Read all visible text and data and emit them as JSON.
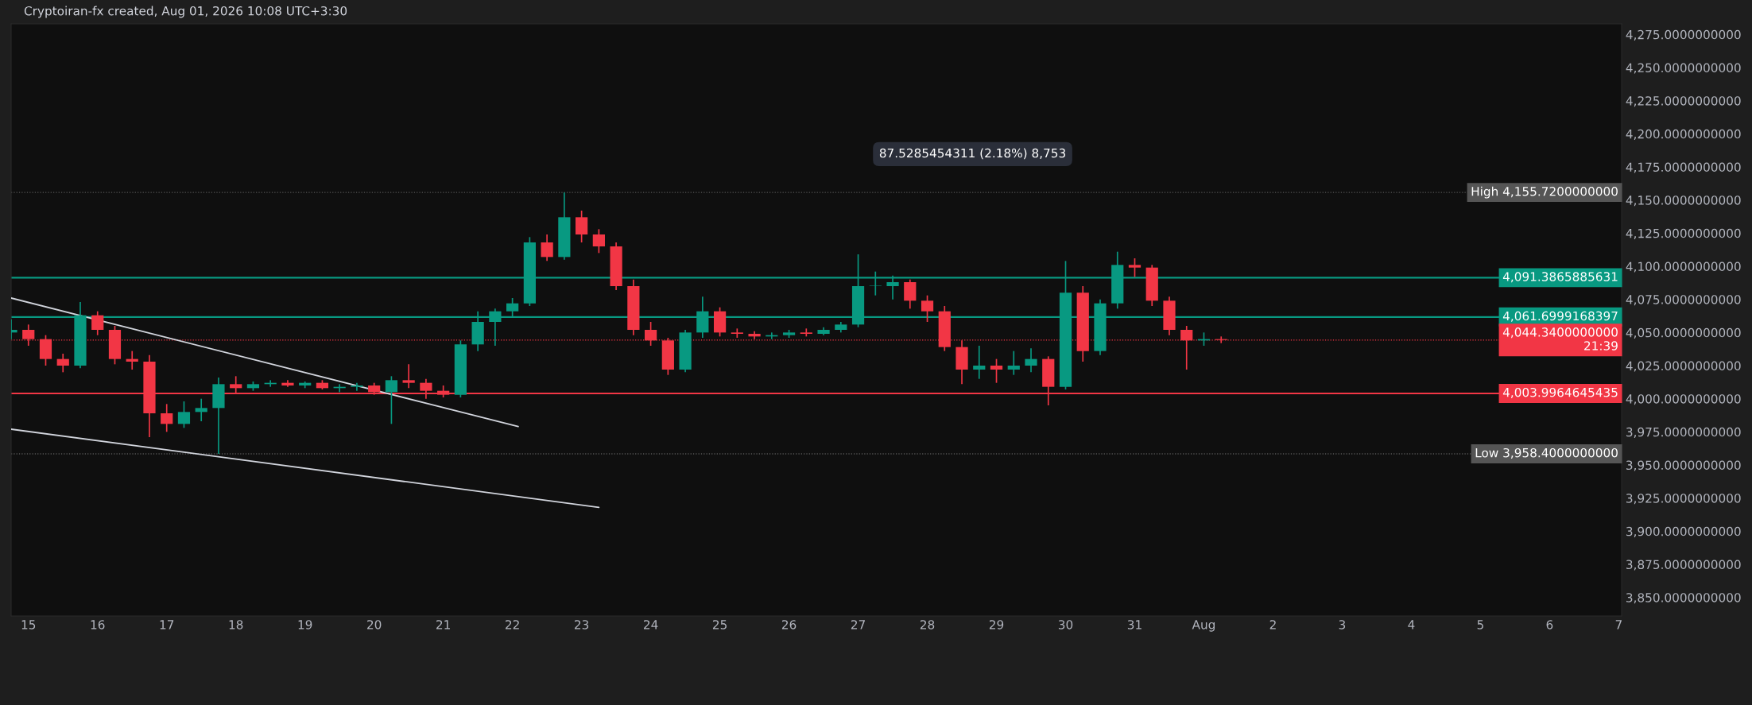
{
  "chart_data": {
    "type": "candlestick",
    "title": "Cryptoiran-fx created, Aug 01, 2026 10:08 UTC+3:30",
    "x": [
      "2026-07-14T18:00",
      "2026-07-15T00:00",
      "2026-07-15T06:00",
      "2026-07-15T12:00",
      "2026-07-15T18:00",
      "2026-07-16T00:00",
      "2026-07-16T06:00",
      "2026-07-16T12:00",
      "2026-07-16T18:00",
      "2026-07-17T00:00",
      "2026-07-17T06:00",
      "2026-07-17T12:00",
      "2026-07-17T18:00",
      "2026-07-18T00:00",
      "2026-07-18T06:00",
      "2026-07-18T12:00",
      "2026-07-18T18:00",
      "2026-07-19T00:00",
      "2026-07-19T06:00",
      "2026-07-19T12:00",
      "2026-07-19T18:00",
      "2026-07-20T00:00",
      "2026-07-20T06:00",
      "2026-07-20T12:00",
      "2026-07-20T18:00",
      "2026-07-21T00:00",
      "2026-07-21T06:00",
      "2026-07-21T12:00",
      "2026-07-21T18:00",
      "2026-07-22T00:00",
      "2026-07-22T06:00",
      "2026-07-22T12:00",
      "2026-07-22T18:00",
      "2026-07-23T00:00",
      "2026-07-23T06:00",
      "2026-07-23T12:00",
      "2026-07-23T18:00",
      "2026-07-24T00:00",
      "2026-07-24T06:00",
      "2026-07-24T12:00",
      "2026-07-24T18:00",
      "2026-07-25T00:00",
      "2026-07-25T06:00",
      "2026-07-25T12:00",
      "2026-07-25T18:00",
      "2026-07-26T00:00",
      "2026-07-26T06:00",
      "2026-07-26T12:00",
      "2026-07-26T18:00",
      "2026-07-27T00:00",
      "2026-07-27T06:00",
      "2026-07-27T12:00",
      "2026-07-27T18:00",
      "2026-07-28T00:00",
      "2026-07-28T06:00",
      "2026-07-28T12:00",
      "2026-07-28T18:00",
      "2026-07-29T00:00",
      "2026-07-29T06:00",
      "2026-07-29T12:00",
      "2026-07-29T18:00",
      "2026-07-30T00:00",
      "2026-07-30T06:00",
      "2026-07-30T12:00",
      "2026-07-30T18:00",
      "2026-07-31T00:00",
      "2026-07-31T06:00",
      "2026-07-31T12:00",
      "2026-07-31T18:00",
      "2026-08-01T00:00",
      "2026-08-01T06:00"
    ],
    "ohlc": [
      [
        4050,
        4060,
        4045,
        4052
      ],
      [
        4052,
        4056,
        4040,
        4045
      ],
      [
        4045,
        4048,
        4025,
        4030
      ],
      [
        4030,
        4034,
        4020,
        4025
      ],
      [
        4025,
        4073,
        4023,
        4063
      ],
      [
        4063,
        4066,
        4048,
        4052
      ],
      [
        4052,
        4055,
        4026,
        4030
      ],
      [
        4030,
        4036,
        4022,
        4028
      ],
      [
        4028,
        4033,
        3971,
        3989
      ],
      [
        3989,
        3996,
        3975,
        3981
      ],
      [
        3981,
        3998,
        3978,
        3990
      ],
      [
        3990,
        4000,
        3983,
        3993
      ],
      [
        3993,
        4016,
        3958.4,
        4011
      ],
      [
        4011,
        4017,
        4004,
        4008
      ],
      [
        4008,
        4013,
        4006,
        4011
      ],
      [
        4011,
        4014,
        4009,
        4012
      ],
      [
        4012,
        4014,
        4009,
        4010
      ],
      [
        4010,
        4013,
        4008,
        4012
      ],
      [
        4012,
        4014,
        4007,
        4008
      ],
      [
        4008,
        4011,
        4005,
        4009
      ],
      [
        4009,
        4012,
        4006,
        4010
      ],
      [
        4010,
        4012,
        4003,
        4005
      ],
      [
        4005,
        4017,
        3981,
        4014
      ],
      [
        4014,
        4026,
        4008,
        4012
      ],
      [
        4012,
        4015,
        4000,
        4006
      ],
      [
        4006,
        4010,
        4001,
        4003
      ],
      [
        4003,
        4044,
        4001,
        4041
      ],
      [
        4041,
        4066,
        4036,
        4058
      ],
      [
        4058,
        4068,
        4040,
        4066
      ],
      [
        4066,
        4076,
        4062,
        4072
      ],
      [
        4072,
        4122,
        4070,
        4118
      ],
      [
        4118,
        4124,
        4104,
        4107
      ],
      [
        4107,
        4155.72,
        4105,
        4137
      ],
      [
        4137,
        4142,
        4118,
        4124
      ],
      [
        4124,
        4128,
        4110,
        4115
      ],
      [
        4115,
        4118,
        4082,
        4085
      ],
      [
        4085,
        4090,
        4048,
        4052
      ],
      [
        4052,
        4058,
        4040,
        4044
      ],
      [
        4044,
        4046,
        4018,
        4022
      ],
      [
        4022,
        4052,
        4020,
        4050
      ],
      [
        4050,
        4077,
        4046,
        4066
      ],
      [
        4066,
        4069,
        4047,
        4050
      ],
      [
        4050,
        4053,
        4046,
        4049
      ],
      [
        4049,
        4051,
        4045,
        4047
      ],
      [
        4047,
        4050,
        4045,
        4048
      ],
      [
        4048,
        4052,
        4046,
        4050
      ],
      [
        4050,
        4053,
        4047,
        4049
      ],
      [
        4049,
        4054,
        4048,
        4052
      ],
      [
        4052,
        4058,
        4050,
        4056
      ],
      [
        4056,
        4109,
        4054,
        4085
      ],
      [
        4085,
        4096,
        4078,
        4085
      ],
      [
        4085,
        4093,
        4075,
        4088
      ],
      [
        4088,
        4090,
        4068,
        4074
      ],
      [
        4074,
        4078,
        4058,
        4066
      ],
      [
        4066,
        4070,
        4036,
        4039
      ],
      [
        4039,
        4044,
        4011,
        4022
      ],
      [
        4022,
        4040,
        4015,
        4025
      ],
      [
        4025,
        4030,
        4012,
        4022
      ],
      [
        4022,
        4036,
        4018,
        4025
      ],
      [
        4025,
        4038,
        4020,
        4030
      ],
      [
        4030,
        4032,
        3995,
        4009
      ],
      [
        4009,
        4104,
        4007,
        4080
      ],
      [
        4080,
        4085,
        4028,
        4036
      ],
      [
        4036,
        4075,
        4033,
        4072
      ],
      [
        4072,
        4111,
        4068,
        4101
      ],
      [
        4101,
        4106,
        4092,
        4099
      ],
      [
        4099,
        4101,
        4070,
        4074
      ],
      [
        4074,
        4077,
        4048,
        4052
      ],
      [
        4052,
        4055,
        4022,
        4044
      ],
      [
        4044,
        4050,
        4040,
        4045
      ],
      [
        4045,
        4047,
        4042,
        4044.34
      ]
    ],
    "colors": [
      "#089981",
      "#f23645",
      "#f23645",
      "#f23645",
      "#089981",
      "#f23645",
      "#f23645",
      "#f23645",
      "#f23645",
      "#f23645",
      "#089981",
      "#089981",
      "#089981",
      "#f23645",
      "#089981",
      "#089981",
      "#f23645",
      "#089981",
      "#f23645",
      "#089981",
      "#089981",
      "#f23645",
      "#089981",
      "#f23645",
      "#f23645",
      "#f23645",
      "#089981",
      "#089981",
      "#089981",
      "#089981",
      "#089981",
      "#f23645",
      "#089981",
      "#f23645",
      "#f23645",
      "#f23645",
      "#f23645",
      "#f23645",
      "#f23645",
      "#089981",
      "#089981",
      "#f23645",
      "#f23645",
      "#f23645",
      "#089981",
      "#089981",
      "#f23645",
      "#089981",
      "#089981",
      "#089981",
      "#089981",
      "#089981",
      "#f23645",
      "#f23645",
      "#f23645",
      "#f23645",
      "#089981",
      "#f23645",
      "#089981",
      "#089981",
      "#f23645",
      "#089981",
      "#f23645",
      "#089981",
      "#089981",
      "#f23645",
      "#f23645",
      "#f23645",
      "#f23645",
      "#089981",
      "#f23645"
    ],
    "series": [
      {
        "type": "line",
        "color": "#d1d4dc",
        "x": [
          "2026-07-14T18:00",
          "2026-07-22T02:00"
        ],
        "values": [
          4076,
          3979
        ]
      },
      {
        "type": "line",
        "color": "#d1d4dc",
        "x": [
          "2026-07-14T18:00",
          "2026-07-23T06:00"
        ],
        "values": [
          3977,
          3918
        ]
      }
    ],
    "xlim": [
      "2026-07-14T18:00",
      "2026-08-07T01:00"
    ],
    "xticks": [
      {
        "value": "2026-07-15",
        "label": "15"
      },
      {
        "value": "2026-07-16",
        "label": "16"
      },
      {
        "value": "2026-07-17",
        "label": "17"
      },
      {
        "value": "2026-07-18",
        "label": "18"
      },
      {
        "value": "2026-07-19",
        "label": "19"
      },
      {
        "value": "2026-07-20",
        "label": "20"
      },
      {
        "value": "2026-07-21",
        "label": "21"
      },
      {
        "value": "2026-07-22",
        "label": "22"
      },
      {
        "value": "2026-07-23",
        "label": "23"
      },
      {
        "value": "2026-07-24",
        "label": "24"
      },
      {
        "value": "2026-07-25",
        "label": "25"
      },
      {
        "value": "2026-07-26",
        "label": "26"
      },
      {
        "value": "2026-07-27",
        "label": "27"
      },
      {
        "value": "2026-07-28",
        "label": "28"
      },
      {
        "value": "2026-07-29",
        "label": "29"
      },
      {
        "value": "2026-07-30",
        "label": "30"
      },
      {
        "value": "2026-07-31",
        "label": "31"
      },
      {
        "value": "2026-08-01",
        "label": "Aug"
      },
      {
        "value": "2026-08-02",
        "label": "2"
      },
      {
        "value": "2026-08-03",
        "label": "3"
      },
      {
        "value": "2026-08-04",
        "label": "4"
      },
      {
        "value": "2026-08-05",
        "label": "5"
      },
      {
        "value": "2026-08-06",
        "label": "6"
      },
      {
        "value": "2026-08-07",
        "label": "7"
      }
    ],
    "ylim": [
      3836,
      4283
    ],
    "yticks": [
      {
        "value": 3850,
        "label": "3,850.0000000000"
      },
      {
        "value": 3875,
        "label": "3,875.0000000000"
      },
      {
        "value": 3900,
        "label": "3,900.0000000000"
      },
      {
        "value": 3925,
        "label": "3,925.0000000000"
      },
      {
        "value": 3950,
        "label": "3,950.0000000000"
      },
      {
        "value": 3975,
        "label": "3,975.0000000000"
      },
      {
        "value": 4000,
        "label": "4,000.0000000000"
      },
      {
        "value": 4025,
        "label": "4,025.0000000000"
      },
      {
        "value": 4050,
        "label": "4,050.0000000000"
      },
      {
        "value": 4075,
        "label": "4,075.0000000000"
      },
      {
        "value": 4100,
        "label": "4,100.0000000000"
      },
      {
        "value": 4125,
        "label": "4,125.0000000000"
      },
      {
        "value": 4150,
        "label": "4,150.0000000000"
      },
      {
        "value": 4175,
        "label": "4,175.0000000000"
      },
      {
        "value": 4200,
        "label": "4,200.0000000000"
      },
      {
        "value": 4225,
        "label": "4,225.0000000000"
      },
      {
        "value": 4250,
        "label": "4,250.0000000000"
      },
      {
        "value": 4275,
        "label": "4,275.0000000000"
      }
    ],
    "ref_lines": [
      {
        "axis": "y",
        "value": 4155.72,
        "label": "High 4,155.7200000000",
        "color": "#555555",
        "line_style": "dotted"
      },
      {
        "axis": "y",
        "value": 4091.3865885631,
        "label": "4,091.3865885631",
        "color": "#089981",
        "line_style": "solid"
      },
      {
        "axis": "y",
        "value": 4061.6999168397,
        "label": "4,061.6999168397",
        "color": "#089981",
        "line_style": "solid"
      },
      {
        "axis": "y",
        "value": 4044.34,
        "label": "4,044.3400000000\n21:39",
        "color": "#f23645",
        "line_style": "dotted"
      },
      {
        "axis": "y",
        "value": 4003.9964645435,
        "label": "4,003.9964645435",
        "color": "#f23645",
        "line_style": "solid"
      },
      {
        "axis": "y",
        "value": 3958.4,
        "label": "Low 3,958.4000000000",
        "color": "#555555",
        "line_style": "dotted"
      }
    ],
    "annotations": [
      "87.5285454311 (2.18%) 8,753"
    ],
    "grid": false
  }
}
